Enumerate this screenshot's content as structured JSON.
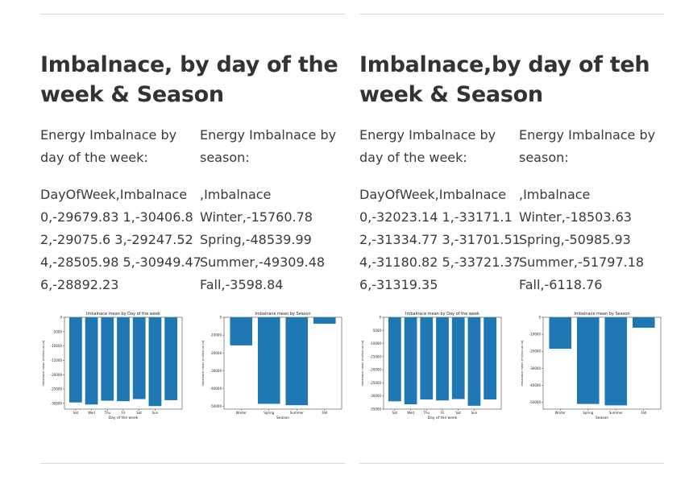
{
  "panels": [
    {
      "title": "Imbalnace, by day of the week & Season",
      "dow_heading": "Energy Imbalnace by day of the week:",
      "dow_lines": [
        "DayOfWeek,Imbalnace",
        "0,-29679.83 1,-30406.8",
        "2,-29075.6 3,-29247.52",
        "4,-28505.98 5,-30949.47",
        "6,-28892.23"
      ],
      "season_heading": "Energy Imbalnace by season:",
      "season_lines": [
        ",Imbalnace",
        "Winter,-15760.78",
        "Spring,-48539.99",
        "Summer,-49309.48",
        "Fall,-3598.84"
      ]
    },
    {
      "title": "Imbalnace,by day of teh week & Season",
      "dow_heading": "Energy Imbalnace by day of the week:",
      "dow_lines": [
        "DayOfWeek,Imbalnace",
        "0,-32023.14 1,-33171.1",
        "2,-31334.77 3,-31701.51",
        "4,-31180.82 5,-33721.37",
        "6,-31319.35"
      ],
      "season_heading": "Energy Imbalnace by season:",
      "season_lines": [
        ",Imbalnace",
        "Winter,-18503.63",
        "Spring,-50985.93",
        "Summer,-51797.18",
        "Fall,-6118.76"
      ]
    }
  ],
  "colors": {
    "bar": "#1f77b4",
    "text": "#3a3a3a",
    "rule": "#d9d9d9"
  },
  "chart_data": [
    {
      "type": "bar",
      "title": "Imbalnace mean by Day of the week",
      "xlabel": "Day of the week",
      "ylabel": "Imbalnace mean (million ua ca)",
      "categories": [
        "Sat",
        "Wed",
        "Thu",
        "Fri",
        "Sat",
        "Sun",
        ""
      ],
      "values": [
        -29679.83,
        -30406.8,
        -29075.6,
        -29247.52,
        -28505.98,
        -30949.47,
        -28892.23
      ],
      "yticks": [
        0,
        -5000,
        -10000,
        -15000,
        -20000,
        -25000,
        -30000
      ],
      "ylim": [
        -32000,
        0
      ]
    },
    {
      "type": "bar",
      "title": "Imbalnace mean by Season",
      "xlabel": "Season",
      "ylabel": "Imbalnace mean (million ua ca)",
      "categories": [
        "Winter",
        "Spring",
        "Summer",
        "Fall"
      ],
      "values": [
        -15760.78,
        -48539.99,
        -49309.48,
        -3598.84
      ],
      "yticks": [
        0,
        -10000,
        -20000,
        -30000,
        -40000,
        -50000
      ],
      "ylim": [
        -51500,
        0
      ]
    },
    {
      "type": "bar",
      "title": "Imbalnace mean by Day of the week",
      "xlabel": "Day of the week",
      "ylabel": "Imbalnace mean (million ua ca)",
      "categories": [
        "Sat",
        "Wed",
        "Thu",
        "Fri",
        "Sat",
        "Sun",
        ""
      ],
      "values": [
        -32023.14,
        -33171.1,
        -31334.77,
        -31701.51,
        -31180.82,
        -33721.37,
        -31319.35
      ],
      "yticks": [
        0,
        -5000,
        -10000,
        -15000,
        -20000,
        -25000,
        -30000,
        -35000
      ],
      "ylim": [
        -35000,
        0
      ]
    },
    {
      "type": "bar",
      "title": "Imbalnace mean by Season",
      "xlabel": "Season",
      "ylabel": "Imbalnace mean (million ua ca)",
      "categories": [
        "Winter",
        "Spring",
        "Summer",
        "Fall"
      ],
      "values": [
        -18503.63,
        -50985.93,
        -51797.18,
        -6118.76
      ],
      "yticks": [
        0,
        -10000,
        -20000,
        -30000,
        -40000,
        -50000
      ],
      "ylim": [
        -54000,
        0
      ]
    }
  ]
}
